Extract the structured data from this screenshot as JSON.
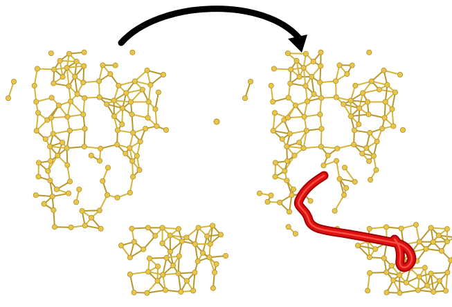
{
  "figure": {
    "description_free": true,
    "structures": [
      {
        "id": "left",
        "highlighted_path": false
      },
      {
        "id": "right",
        "highlighted_path": true
      }
    ],
    "transition_arrow": {
      "from": "left",
      "to": "right",
      "direction": "left-to-right"
    },
    "colors": {
      "background": "#ffffff",
      "bond": "#d4b43a",
      "bond_dark": "#b8962a",
      "atom": "#e7c64c",
      "atom_edge": "#b28f22",
      "arrow": "#000000",
      "path": "#e01010",
      "path_dark": "#a00000"
    }
  }
}
